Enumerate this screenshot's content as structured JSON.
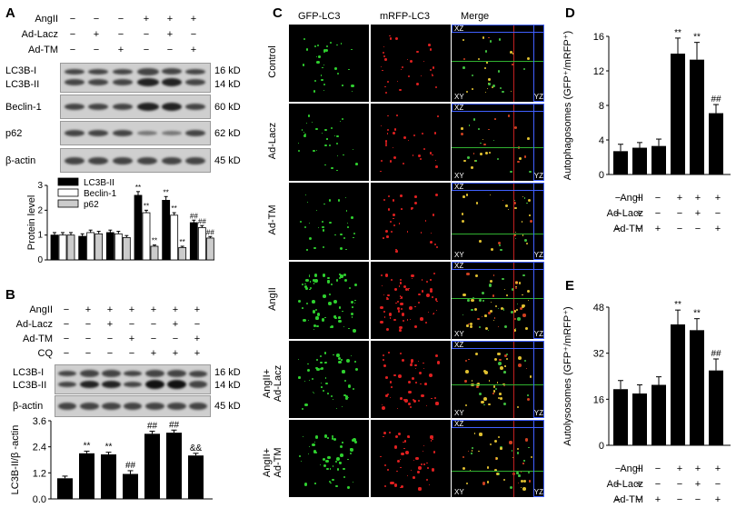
{
  "panels": {
    "A": {
      "letter": "A",
      "conditions": [
        {
          "label": "AngII",
          "marks": [
            "−",
            "−",
            "−",
            "+",
            "+",
            "+"
          ]
        },
        {
          "label": "Ad-Lacz",
          "marks": [
            "−",
            "+",
            "−",
            "−",
            "+",
            "−"
          ]
        },
        {
          "label": "Ad-TM",
          "marks": [
            "−",
            "−",
            "+",
            "−",
            "−",
            "+"
          ]
        }
      ],
      "blots": [
        {
          "left": "LC3B-I",
          "right": "16 kD"
        },
        {
          "left": "LC3B-II",
          "right": "14 kD"
        },
        {
          "left": "Beclin-1",
          "right": "60 kD"
        },
        {
          "left": "p62",
          "right": "62 kD"
        },
        {
          "left": "β-actin",
          "right": "45 kD"
        }
      ],
      "chart_data": {
        "type": "bar",
        "ylabel": "Protein level",
        "ylim": [
          0,
          3
        ],
        "yticks": [
          "0",
          "1",
          "2",
          "3"
        ],
        "groups": 6,
        "series": [
          {
            "name": "LC3B-II",
            "color": "#000000",
            "values": [
              1.0,
              0.95,
              1.1,
              2.6,
              2.4,
              1.5
            ]
          },
          {
            "name": "Beclin-1",
            "color": "#ffffff",
            "values": [
              1.0,
              1.1,
              1.05,
              1.9,
              1.8,
              1.3
            ]
          },
          {
            "name": "p62",
            "color": "#cccccc",
            "values": [
              1.0,
              1.05,
              0.9,
              0.55,
              0.5,
              0.88
            ]
          }
        ],
        "errors": [
          [
            0.1,
            0.1,
            0.1,
            0.15,
            0.15,
            0.1
          ],
          [
            0.1,
            0.1,
            0.1,
            0.1,
            0.1,
            0.08
          ],
          [
            0.1,
            0.1,
            0.08,
            0.05,
            0.05,
            0.06
          ]
        ],
        "annotations": [
          {
            "group": 3,
            "series": 0,
            "text": "**"
          },
          {
            "group": 3,
            "series": 1,
            "text": "**"
          },
          {
            "group": 3,
            "series": 2,
            "text": "**"
          },
          {
            "group": 4,
            "series": 0,
            "text": "**"
          },
          {
            "group": 4,
            "series": 1,
            "text": "**"
          },
          {
            "group": 4,
            "series": 2,
            "text": "**"
          },
          {
            "group": 5,
            "series": 0,
            "text": "##"
          },
          {
            "group": 5,
            "series": 1,
            "text": "##"
          },
          {
            "group": 5,
            "series": 2,
            "text": "##"
          }
        ]
      }
    },
    "B": {
      "letter": "B",
      "conditions": [
        {
          "label": "AngII",
          "marks": [
            "−",
            "+",
            "+",
            "+",
            "+",
            "+",
            "+"
          ]
        },
        {
          "label": "Ad-Lacz",
          "marks": [
            "−",
            "−",
            "+",
            "−",
            "−",
            "+",
            "−"
          ]
        },
        {
          "label": "Ad-TM",
          "marks": [
            "−",
            "−",
            "−",
            "+",
            "−",
            "−",
            "+"
          ]
        },
        {
          "label": "CQ",
          "marks": [
            "−",
            "−",
            "−",
            "−",
            "+",
            "+",
            "+"
          ]
        }
      ],
      "blots": [
        {
          "left": "LC3B-I",
          "right": "16 kD"
        },
        {
          "left": "LC3B-II",
          "right": "14 kD"
        },
        {
          "left": "β-actin",
          "right": "45 kD"
        }
      ],
      "chart_data": {
        "type": "bar",
        "ylabel": "LC3B-II/β -actin",
        "ylim": [
          0,
          3.6
        ],
        "yticks": [
          "0.0",
          "1.2",
          "2.4",
          "3.6"
        ],
        "values": [
          0.95,
          2.1,
          2.05,
          1.15,
          3.0,
          3.05,
          2.0
        ],
        "errors": [
          0.1,
          0.1,
          0.1,
          0.15,
          0.12,
          0.12,
          0.1
        ],
        "annotations": [
          "",
          "**",
          "**",
          "##",
          "##",
          "##",
          "&&"
        ]
      }
    },
    "C": {
      "letter": "C",
      "columns": [
        "GFP-LC3",
        "mRFP-LC3",
        "Merge"
      ],
      "rows": [
        "Control",
        "Ad-Lacz",
        "Ad-TM",
        "AngII",
        "AngII+\nAd-Lacz",
        "AngII+\nAd-TM"
      ],
      "orthogonal_labels": {
        "xz": "XZ",
        "xy": "XY",
        "yz": "YZ"
      }
    },
    "D": {
      "letter": "D",
      "conditions": [
        {
          "label": "AngII",
          "marks": [
            "−",
            "−",
            "−",
            "+",
            "+",
            "+"
          ]
        },
        {
          "label": "Ad-Lacz",
          "marks": [
            "−",
            "+",
            "−",
            "−",
            "+",
            "−"
          ]
        },
        {
          "label": "Ad-TM",
          "marks": [
            "−",
            "−",
            "+",
            "−",
            "−",
            "+"
          ]
        }
      ],
      "chart_data": {
        "type": "bar",
        "ylabel": "Autophagosomes (GFP⁺/mRFP⁺)",
        "ylim": [
          0,
          16
        ],
        "yticks": [
          "0",
          "4",
          "8",
          "12",
          "16"
        ],
        "values": [
          2.7,
          3.1,
          3.3,
          14.0,
          13.3,
          7.1
        ],
        "errors": [
          0.8,
          0.6,
          0.8,
          1.8,
          2.0,
          1.0
        ],
        "annotations": [
          "",
          "",
          "",
          "**",
          "**",
          "##"
        ]
      }
    },
    "E": {
      "letter": "E",
      "conditions": [
        {
          "label": "AngII",
          "marks": [
            "−",
            "−",
            "−",
            "+",
            "+",
            "+"
          ]
        },
        {
          "label": "Ad-Lacz",
          "marks": [
            "−",
            "+",
            "−",
            "−",
            "+",
            "−"
          ]
        },
        {
          "label": "Ad-TM",
          "marks": [
            "−",
            "−",
            "+",
            "−",
            "−",
            "+"
          ]
        }
      ],
      "chart_data": {
        "type": "bar",
        "ylabel": "Autolysosomes (GFP⁺/mRFP⁺)",
        "ylim": [
          0,
          48
        ],
        "yticks": [
          "0",
          "16",
          "32",
          "48"
        ],
        "values": [
          19.5,
          18.0,
          21.0,
          42.0,
          40.0,
          26.0
        ],
        "errors": [
          3.0,
          3.0,
          2.8,
          5.0,
          4.0,
          4.0
        ],
        "annotations": [
          "",
          "",
          "",
          "**",
          "**",
          "##"
        ]
      }
    }
  }
}
